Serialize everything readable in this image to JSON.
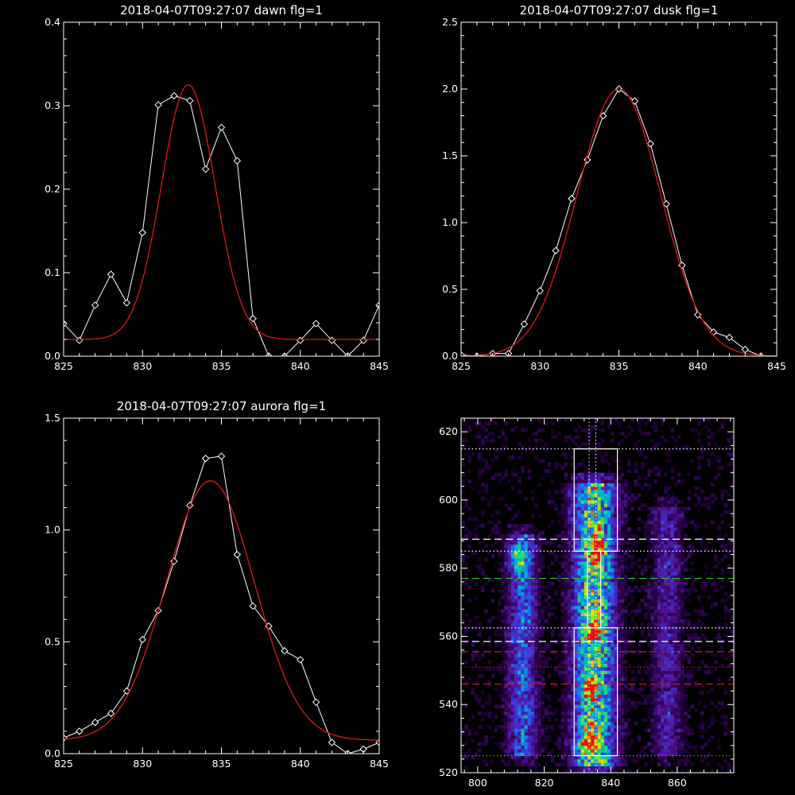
{
  "colors": {
    "background": "#000000",
    "axes": "#ffffff",
    "data": "#ffffff",
    "fit": "#e01818"
  },
  "chart_data": [
    {
      "id": "dawn",
      "type": "line",
      "title": "2018-04-07T09:27:07 dawn flg=1",
      "xlim": [
        825,
        845
      ],
      "ylim": [
        0,
        0.4
      ],
      "xticks": [
        825,
        830,
        835,
        840,
        845
      ],
      "xtick_labels": [
        "825",
        "830",
        "835",
        "840",
        "845"
      ],
      "yticks": [
        0,
        0.1,
        0.2,
        0.3,
        0.4
      ],
      "ytick_labels": [
        "0.0",
        "0.1",
        "0.2",
        "0.3",
        "0.4"
      ],
      "series": [
        {
          "role": "data",
          "marker": "diamond",
          "x": [
            825,
            826,
            827,
            828,
            829,
            830,
            831,
            832,
            833,
            834,
            835,
            836,
            837,
            838,
            839,
            840,
            841,
            842,
            843,
            844,
            845
          ],
          "y": [
            0.039,
            0.019,
            0.061,
            0.098,
            0.064,
            0.148,
            0.301,
            0.312,
            0.306,
            0.224,
            0.274,
            0.234,
            0.045,
            0.0,
            0.0,
            0.019,
            0.039,
            0.019,
            0.0,
            0.019,
            0.061
          ]
        },
        {
          "role": "fit",
          "gaussian": {
            "peak": 0.305,
            "center": 832.9,
            "sigma": 1.7,
            "offset": 0.02
          }
        }
      ]
    },
    {
      "id": "dusk",
      "type": "line",
      "title": "2018-04-07T09:27:07 dusk flg=1",
      "xlim": [
        825,
        845
      ],
      "ylim": [
        0,
        2.5
      ],
      "xticks": [
        825,
        830,
        835,
        840,
        845
      ],
      "xtick_labels": [
        "825",
        "830",
        "835",
        "840",
        "845"
      ],
      "yticks": [
        0,
        0.5,
        1.0,
        1.5,
        2.0,
        2.5
      ],
      "ytick_labels": [
        "0.0",
        "0.5",
        "1.0",
        "1.5",
        "2.0",
        "2.5"
      ],
      "series": [
        {
          "role": "data",
          "marker": "diamond",
          "x": [
            825,
            826,
            827,
            828,
            829,
            830,
            831,
            832,
            833,
            834,
            835,
            836,
            837,
            838,
            839,
            840,
            841,
            842,
            843,
            844
          ],
          "y": [
            0.01,
            0.0,
            0.02,
            0.02,
            0.24,
            0.49,
            0.79,
            1.18,
            1.47,
            1.8,
            2.0,
            1.91,
            1.59,
            1.14,
            0.68,
            0.31,
            0.18,
            0.14,
            0.05,
            0.0
          ]
        },
        {
          "role": "fit",
          "gaussian": {
            "peak": 2.0,
            "center": 835.0,
            "sigma": 2.65,
            "offset": 0.0
          }
        }
      ]
    },
    {
      "id": "aurora",
      "type": "line",
      "title": "2018-04-07T09:27:07 aurora flg=1",
      "xlim": [
        825,
        845
      ],
      "ylim": [
        0,
        1.5
      ],
      "xticks": [
        825,
        830,
        835,
        840,
        845
      ],
      "xtick_labels": [
        "825",
        "830",
        "835",
        "840",
        "845"
      ],
      "yticks": [
        0,
        0.5,
        1.0,
        1.5
      ],
      "ytick_labels": [
        "0.0",
        "0.5",
        "1.0",
        "1.5"
      ],
      "series": [
        {
          "role": "data",
          "marker": "diamond",
          "x": [
            825,
            826,
            827,
            828,
            829,
            830,
            831,
            832,
            833,
            834,
            835,
            836,
            837,
            838,
            839,
            840,
            841,
            842,
            843,
            844,
            845
          ],
          "y": [
            0.07,
            0.1,
            0.14,
            0.18,
            0.28,
            0.51,
            0.64,
            0.86,
            1.11,
            1.32,
            1.33,
            0.89,
            0.66,
            0.57,
            0.46,
            0.42,
            0.23,
            0.05,
            0.0,
            0.02,
            0.05
          ]
        },
        {
          "role": "fit",
          "gaussian": {
            "peak": 1.16,
            "center": 834.3,
            "sigma": 2.8,
            "offset": 0.06
          }
        }
      ]
    },
    {
      "id": "spectrogram",
      "type": "heatmap",
      "title": "",
      "xlim": [
        795,
        877
      ],
      "ylim": [
        520,
        624
      ],
      "xticks": [
        800,
        820,
        840,
        860
      ],
      "xtick_labels": [
        "800",
        "820",
        "840",
        "860"
      ],
      "yticks": [
        520,
        540,
        560,
        580,
        600,
        620
      ],
      "ytick_labels": [
        "520",
        "540",
        "560",
        "580",
        "600",
        "620"
      ],
      "stripes": [
        {
          "center_x": 813.5,
          "half_width": 5,
          "y_range": [
            525,
            590
          ],
          "strength": 0.55
        },
        {
          "center_x": 835,
          "half_width": 7,
          "y_range": [
            522,
            605
          ],
          "strength": 1.0
        },
        {
          "center_x": 857,
          "half_width": 5,
          "y_range": [
            525,
            598
          ],
          "strength": 0.35
        }
      ],
      "hotspots": [
        {
          "x": 836,
          "y": 585,
          "value": 1.0
        },
        {
          "x": 833,
          "y": 529,
          "value": 0.95
        },
        {
          "x": 834,
          "y": 545,
          "value": 0.85
        },
        {
          "x": 835,
          "y": 562,
          "value": 0.85
        },
        {
          "x": 812,
          "y": 583,
          "value": 0.8
        }
      ],
      "boxes": [
        {
          "x": [
            829,
            842
          ],
          "y": [
            585,
            615
          ],
          "color": "#ffffff"
        },
        {
          "x": [
            829,
            842
          ],
          "y": [
            525,
            562.5
          ],
          "color": "#ffffff"
        },
        {
          "x": [
            833,
            837
          ],
          "y": [
            562.5,
            585
          ],
          "color": "#ffffff"
        }
      ],
      "hlines": [
        {
          "y": 615,
          "style": "dotted",
          "color": "#ffffff"
        },
        {
          "y": 588.5,
          "style": "dashed",
          "color": "#ffffff"
        },
        {
          "y": 585,
          "style": "dotted",
          "color": "#ffffff"
        },
        {
          "y": 577,
          "style": "dashed",
          "color": "#20d020"
        },
        {
          "y": 562.5,
          "style": "dotted",
          "color": "#ffffff"
        },
        {
          "y": 558.5,
          "style": "dashed",
          "color": "#ffffff"
        },
        {
          "y": 555.5,
          "style": "dashed",
          "color": "#d01818"
        },
        {
          "y": 551,
          "style": "dotted",
          "color": "#d01818"
        },
        {
          "y": 546,
          "style": "dashed",
          "color": "#d01818"
        },
        {
          "y": 525,
          "style": "dotted",
          "color": "#20d020"
        }
      ],
      "vlines": [
        {
          "x": 833.5,
          "style": "dotted",
          "color": "#ffffff"
        },
        {
          "x": 835.5,
          "style": "dotted",
          "color": "#ffffff"
        }
      ]
    }
  ]
}
